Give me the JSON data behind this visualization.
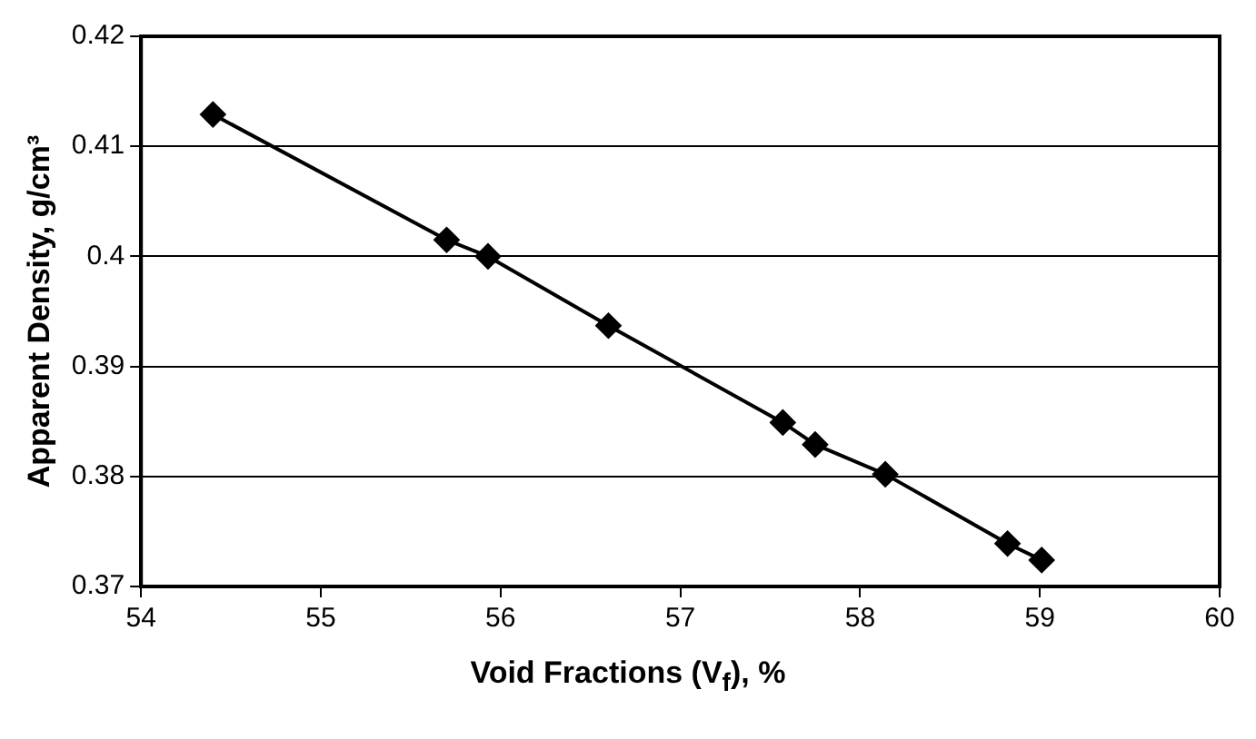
{
  "chart_data": {
    "type": "line",
    "xlabel": "Void Fractions (V$_{f}$), %",
    "ylabel": "Apparent Density, g/cm³",
    "x": [
      54.4,
      55.7,
      55.93,
      56.6,
      57.57,
      57.75,
      58.14,
      58.82,
      59.01
    ],
    "series": [
      {
        "color": "#000000",
        "values": [
          0.4129,
          0.4015,
          0.4,
          0.3937,
          0.3849,
          0.3829,
          0.3802,
          0.3739,
          0.3724
        ]
      }
    ],
    "xlim": [
      54,
      60
    ],
    "xticks": [
      54,
      55,
      56,
      57,
      58,
      59,
      60
    ],
    "ylim": [
      0.37,
      0.42
    ],
    "yticks": [
      0.37,
      0.38,
      0.39,
      0.4,
      0.41,
      0.42
    ],
    "grid": "y",
    "marker": "diamond",
    "line_style": "solid",
    "legend": false
  }
}
